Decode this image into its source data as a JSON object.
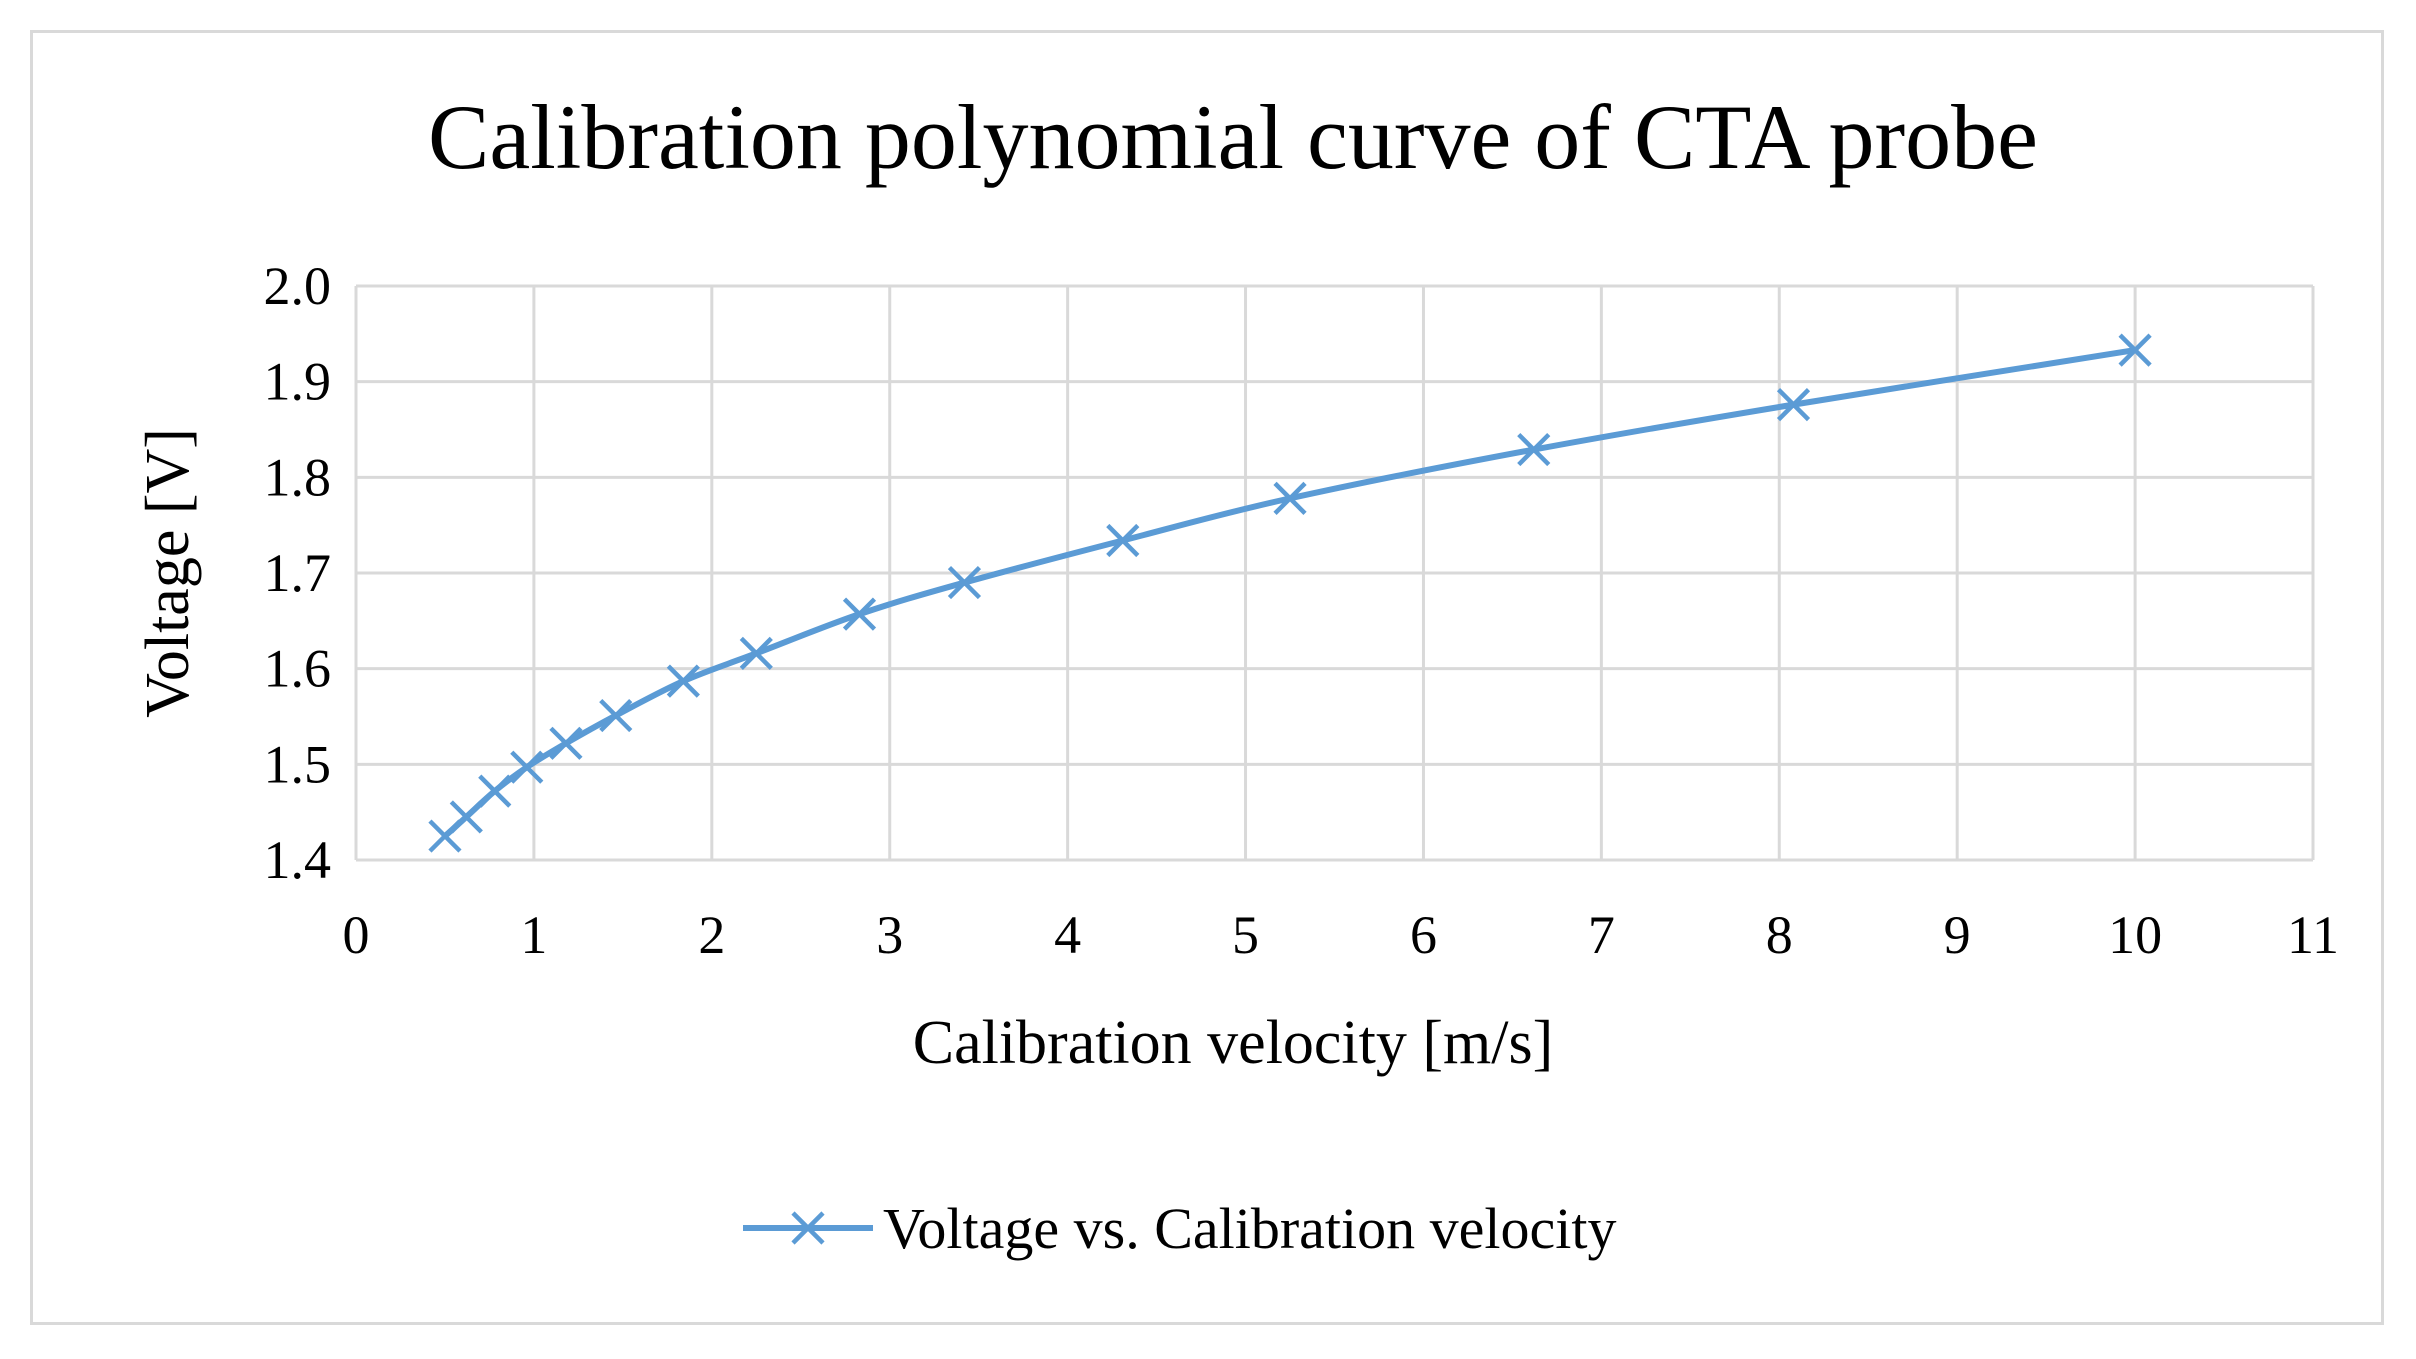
{
  "chart_data": {
    "type": "line",
    "title": "Calibration polynomial curve of CTA probe",
    "xlabel": "Calibration velocity [m/s]",
    "ylabel": "Voltage [V]",
    "xlim": [
      0,
      11
    ],
    "ylim": [
      1.4,
      2.0
    ],
    "x_ticks": [
      "0",
      "1",
      "2",
      "3",
      "4",
      "5",
      "6",
      "7",
      "8",
      "9",
      "10",
      "11"
    ],
    "y_ticks": [
      "1.4",
      "1.5",
      "1.6",
      "1.7",
      "1.8",
      "1.9",
      "2.0"
    ],
    "grid": true,
    "legend_position": "bottom",
    "colors": {
      "series": "#5b9bd5",
      "grid": "#d9d9d9",
      "frame": "#d9d9d9"
    },
    "series": [
      {
        "name": "Voltage vs. Calibration velocity",
        "marker": "x",
        "x": [
          0.5,
          0.62,
          0.78,
          0.96,
          1.18,
          1.46,
          1.84,
          2.25,
          2.83,
          3.42,
          4.31,
          5.25,
          6.62,
          8.08,
          10.0
        ],
        "y": [
          1.425,
          1.445,
          1.472,
          1.497,
          1.522,
          1.551,
          1.587,
          1.616,
          1.657,
          1.69,
          1.734,
          1.778,
          1.829,
          1.876,
          1.933
        ]
      }
    ]
  }
}
